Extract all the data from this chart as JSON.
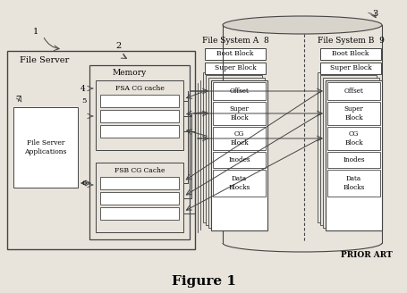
{
  "title": "Figure 1",
  "prior_art": "PRIOR ART",
  "bg_color": "#e8e4dc",
  "box_color": "#ffffff",
  "border_color": "#444444",
  "labels": {
    "file_server": "File Server",
    "memory": "Memory",
    "fsa_cg_cache": "FSA CG cache",
    "fsb_cg_cache": "FSB CG Cache",
    "file_server_apps": "File Server\nApplications",
    "fs_a": "File System A  8",
    "fs_b": "File System B  9",
    "boot_block_a": "Boot Block",
    "super_block_a": "Super Block",
    "boot_block_b": "Boot Block",
    "super_block_b": "Super Block",
    "offset_a": "Offset",
    "super_block2_a": "Super\nBlock",
    "cg_block_a": "CG\nBlock",
    "inodes_a": "Inodes",
    "data_blocks_a": "Data\nBlocks",
    "offset_b": "Offset",
    "super_block2_b": "Super\nBlock",
    "cg_block_b": "CG\nBlock",
    "inodes_b": "Inodes",
    "data_blocks_b": "Data\nBlocks"
  },
  "numbers": {
    "n1": "1",
    "n2": "2",
    "n3": "3",
    "n4": "4",
    "n5": "5",
    "n6": "6",
    "n7": "7"
  }
}
